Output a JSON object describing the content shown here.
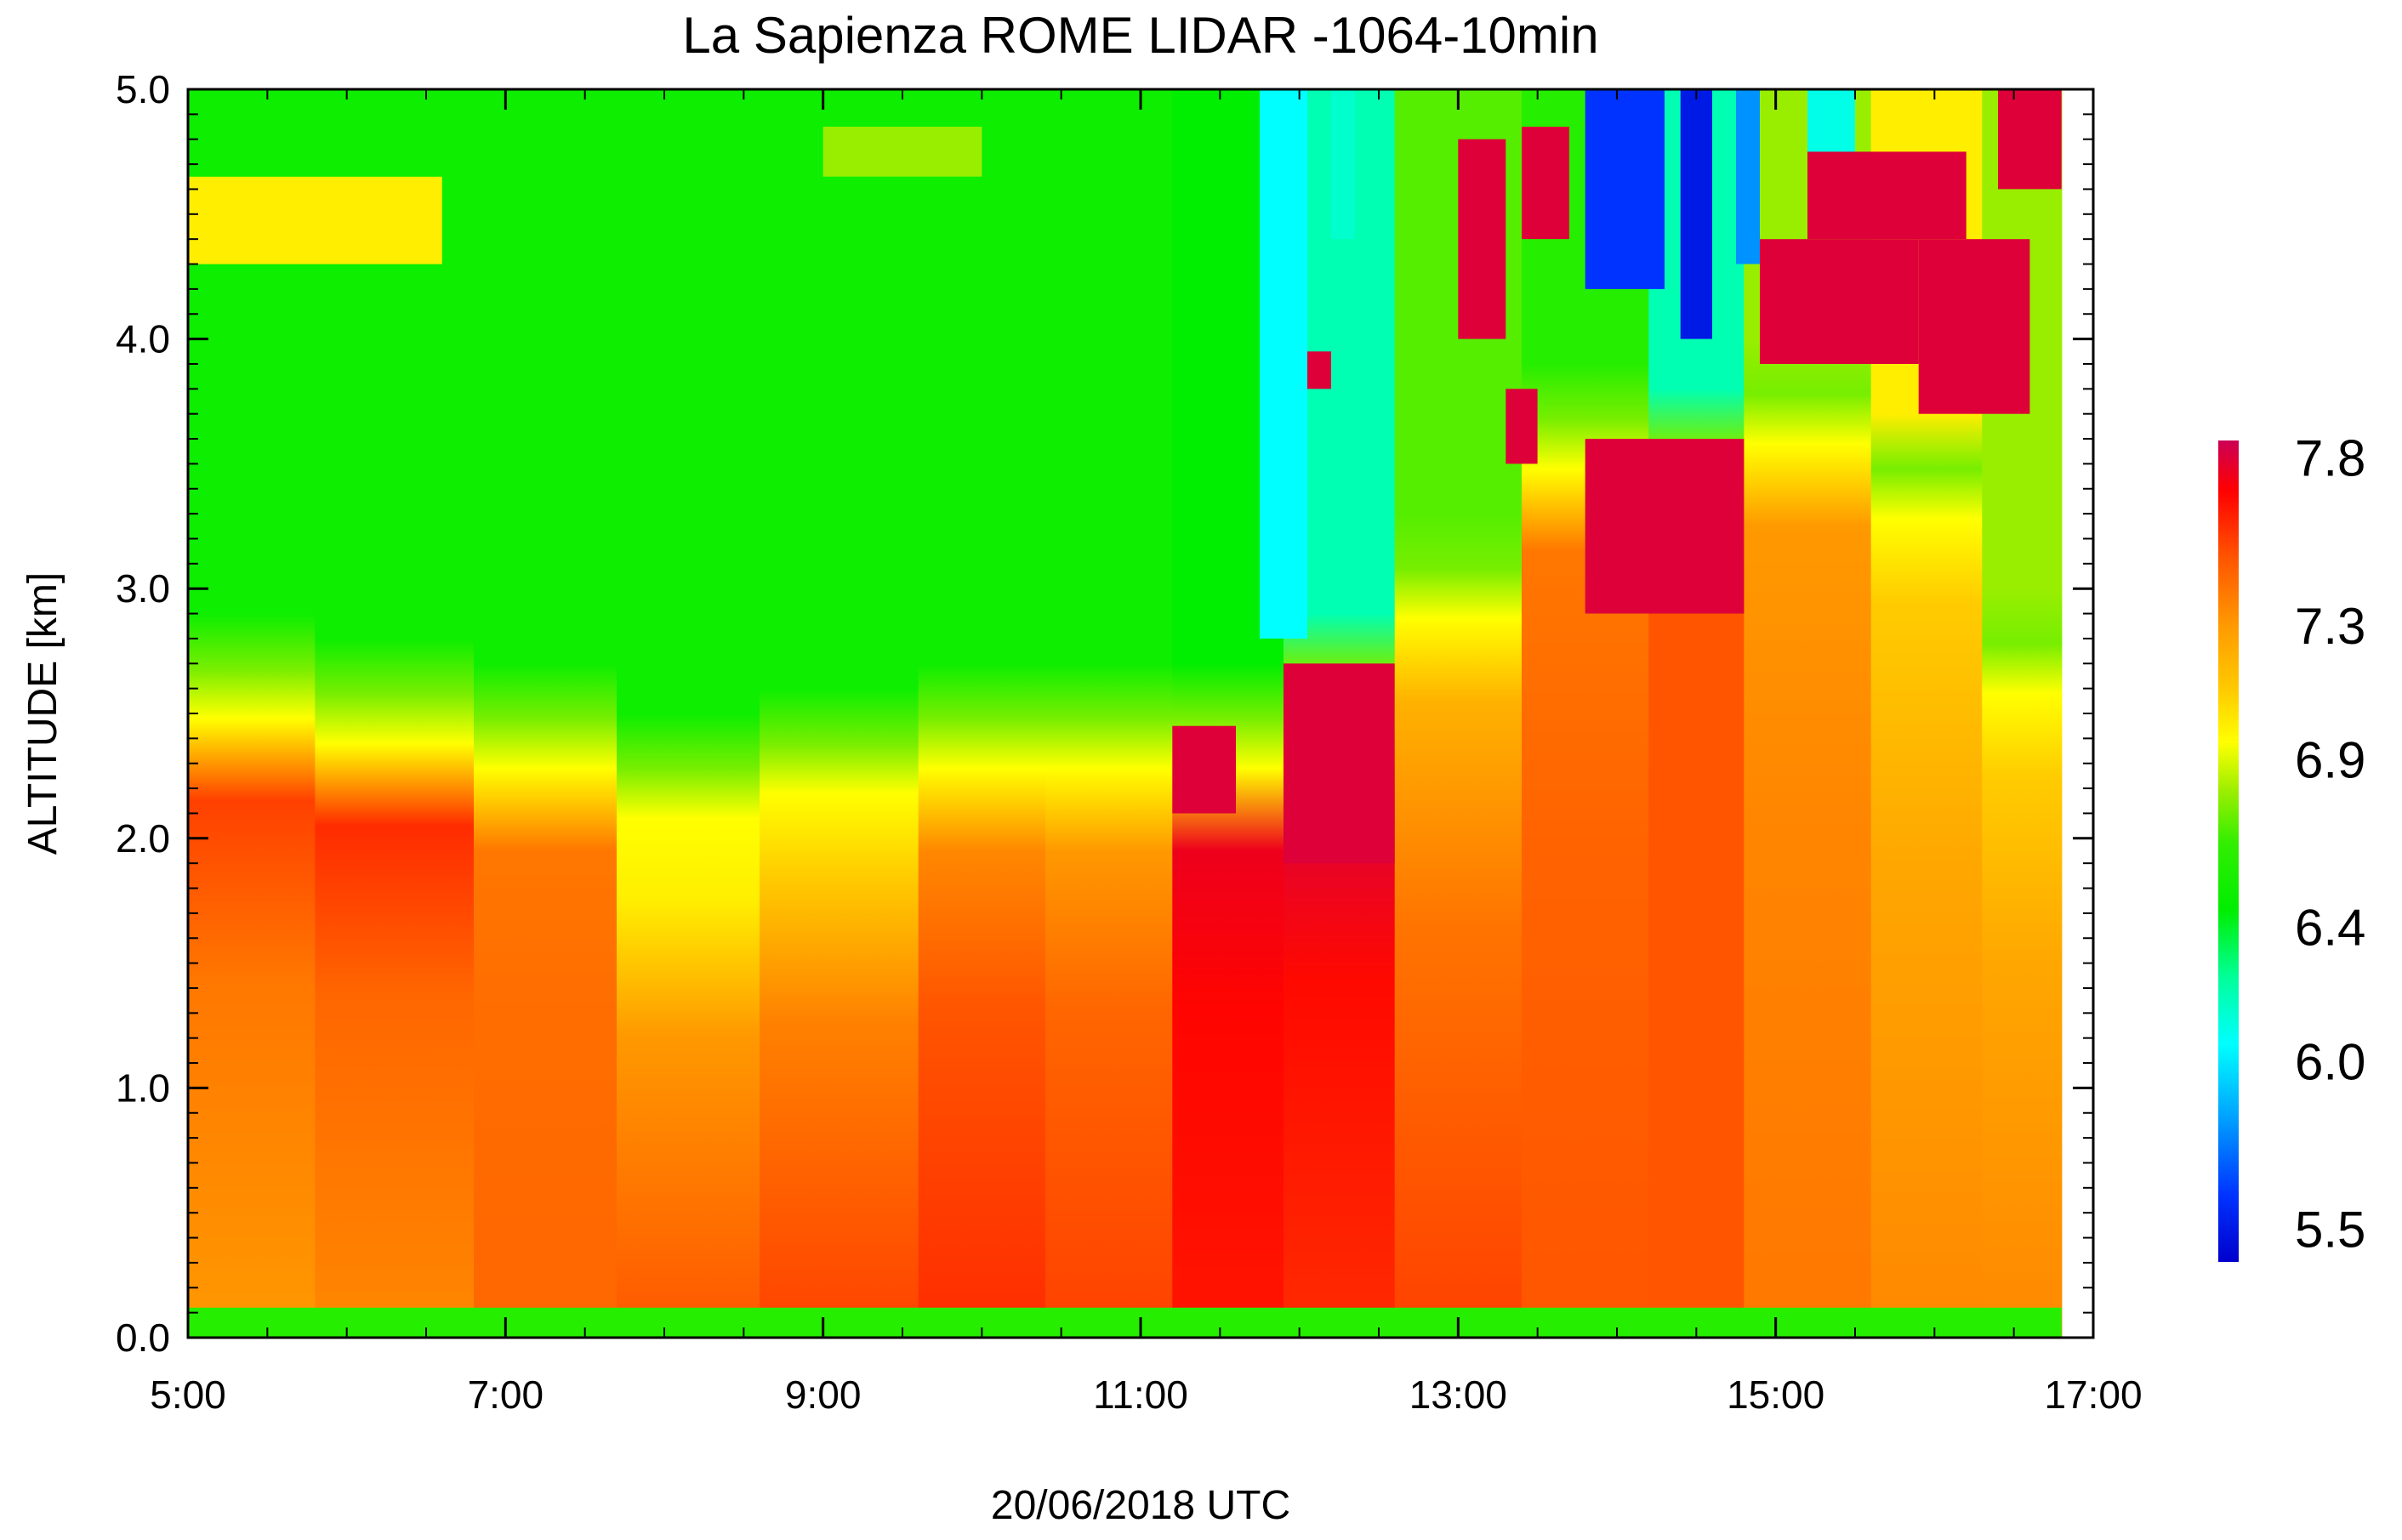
{
  "chart_data": {
    "type": "heatmap",
    "title": "La Sapienza ROME LIDAR -1064-10min",
    "xlabel": "20/06/2018 UTC",
    "ylabel": "ALTITUDE [km]",
    "x_unit": "hour UTC",
    "xlim": [
      5,
      17
    ],
    "ylim": [
      0,
      5
    ],
    "x_ticks": [
      {
        "value": 5,
        "label": "5:00"
      },
      {
        "value": 7,
        "label": "7:00"
      },
      {
        "value": 9,
        "label": "9:00"
      },
      {
        "value": 11,
        "label": "11:00"
      },
      {
        "value": 13,
        "label": "13:00"
      },
      {
        "value": 15,
        "label": "15:00"
      },
      {
        "value": 17,
        "label": "17:00"
      }
    ],
    "y_ticks": [
      {
        "value": 0,
        "label": "0.0"
      },
      {
        "value": 1,
        "label": "1.0"
      },
      {
        "value": 2,
        "label": "2.0"
      },
      {
        "value": 3,
        "label": "3.0"
      },
      {
        "value": 4,
        "label": "4.0"
      },
      {
        "value": 5,
        "label": "5.0"
      }
    ],
    "colorbar": {
      "range": [
        5.4,
        7.85
      ],
      "ticks": [
        {
          "value": 7.8,
          "label": "7.8"
        },
        {
          "value": 7.3,
          "label": "7.3"
        },
        {
          "value": 6.9,
          "label": "6.9"
        },
        {
          "value": 6.4,
          "label": "6.4"
        },
        {
          "value": 6.0,
          "label": "6.0"
        },
        {
          "value": 5.5,
          "label": "5.5"
        }
      ],
      "stops": [
        {
          "value": 5.4,
          "color": "#0000cc"
        },
        {
          "value": 5.6,
          "color": "#0033ff"
        },
        {
          "value": 5.85,
          "color": "#00aaff"
        },
        {
          "value": 6.05,
          "color": "#00ffff"
        },
        {
          "value": 6.25,
          "color": "#00ff99"
        },
        {
          "value": 6.45,
          "color": "#00ee00"
        },
        {
          "value": 6.65,
          "color": "#33ee00"
        },
        {
          "value": 6.8,
          "color": "#99ee00"
        },
        {
          "value": 6.95,
          "color": "#ffff00"
        },
        {
          "value": 7.1,
          "color": "#ffcc00"
        },
        {
          "value": 7.3,
          "color": "#ff9900"
        },
        {
          "value": 7.5,
          "color": "#ff5500"
        },
        {
          "value": 7.7,
          "color": "#ff0000"
        },
        {
          "value": 7.85,
          "color": "#cc0055"
        }
      ]
    },
    "time_blocks": [
      {
        "start": 5.0,
        "end": 5.8,
        "pbl_top": 2.6,
        "low": 7.3,
        "pbl": 7.55,
        "free": 6.5
      },
      {
        "start": 5.8,
        "end": 6.8,
        "pbl_top": 2.5,
        "low": 7.35,
        "pbl": 7.6,
        "free": 6.5
      },
      {
        "start": 6.8,
        "end": 7.7,
        "pbl_top": 2.4,
        "low": 7.45,
        "pbl": 7.4,
        "free": 6.5
      },
      {
        "start": 7.7,
        "end": 8.6,
        "pbl_top": 2.2,
        "low": 7.5,
        "pbl": 7.0,
        "free": 6.5
      },
      {
        "start": 8.6,
        "end": 9.6,
        "pbl_top": 2.3,
        "low": 7.55,
        "pbl": 7.1,
        "free": 6.5
      },
      {
        "start": 9.6,
        "end": 10.4,
        "pbl_top": 2.4,
        "low": 7.6,
        "pbl": 7.35,
        "free": 6.5
      },
      {
        "start": 10.4,
        "end": 11.2,
        "pbl_top": 2.4,
        "low": 7.55,
        "pbl": 7.3,
        "free": 6.5
      },
      {
        "start": 11.2,
        "end": 11.9,
        "pbl_top": 2.4,
        "low": 7.65,
        "pbl": 7.75,
        "free": 6.45
      },
      {
        "start": 11.9,
        "end": 12.6,
        "pbl_top": 2.6,
        "low": 7.6,
        "pbl": 7.8,
        "free": 6.2
      },
      {
        "start": 12.6,
        "end": 13.4,
        "pbl_top": 3.0,
        "low": 7.55,
        "pbl": 7.2,
        "free": 6.7
      },
      {
        "start": 13.4,
        "end": 14.2,
        "pbl_top": 3.6,
        "low": 7.5,
        "pbl": 7.4,
        "free": 6.6
      },
      {
        "start": 14.2,
        "end": 14.8,
        "pbl_top": 3.5,
        "low": 7.5,
        "pbl": 7.5,
        "free": 6.2
      },
      {
        "start": 14.8,
        "end": 15.6,
        "pbl_top": 3.7,
        "low": 7.4,
        "pbl": 7.3,
        "free": 6.8
      },
      {
        "start": 15.6,
        "end": 16.3,
        "pbl_top": 3.4,
        "low": 7.35,
        "pbl": 7.1,
        "free": 7.0
      },
      {
        "start": 16.3,
        "end": 16.8,
        "pbl_top": 2.7,
        "low": 7.35,
        "pbl": 7.1,
        "free": 6.8
      }
    ],
    "features": [
      {
        "kind": "surface",
        "t0": 5.0,
        "t1": 16.8,
        "z0": 0.0,
        "z1": 0.12,
        "value": 6.6
      },
      {
        "kind": "aerosol_layer",
        "t0": 5.0,
        "t1": 6.6,
        "z0": 4.3,
        "z1": 4.65,
        "value": 7.0
      },
      {
        "kind": "aerosol_layer",
        "t0": 9.0,
        "t1": 10.0,
        "z0": 4.65,
        "z1": 4.85,
        "value": 6.8
      },
      {
        "kind": "cloud",
        "t0": 11.2,
        "t1": 11.6,
        "z0": 2.1,
        "z1": 2.45,
        "value": 7.8
      },
      {
        "kind": "cloud",
        "t0": 11.9,
        "t1": 12.6,
        "z0": 1.9,
        "z1": 2.7,
        "value": 7.8
      },
      {
        "kind": "cloud",
        "t0": 12.0,
        "t1": 12.2,
        "z0": 3.8,
        "z1": 3.95,
        "value": 7.8
      },
      {
        "kind": "clear_column",
        "t0": 11.75,
        "t1": 12.05,
        "z0": 2.8,
        "z1": 5.0,
        "value": 6.05
      },
      {
        "kind": "clear_column",
        "t0": 12.2,
        "t1": 12.35,
        "z0": 4.4,
        "z1": 5.0,
        "value": 6.15
      },
      {
        "kind": "cloud",
        "t0": 13.0,
        "t1": 13.3,
        "z0": 4.0,
        "z1": 4.8,
        "value": 7.8
      },
      {
        "kind": "cloud",
        "t0": 13.4,
        "t1": 13.7,
        "z0": 4.4,
        "z1": 4.85,
        "value": 7.8
      },
      {
        "kind": "cloud",
        "t0": 13.3,
        "t1": 13.5,
        "z0": 3.5,
        "z1": 3.8,
        "value": 7.8
      },
      {
        "kind": "clear_column",
        "t0": 13.8,
        "t1": 14.3,
        "z0": 4.2,
        "z1": 5.0,
        "value": 5.6
      },
      {
        "kind": "clear_column",
        "t0": 14.4,
        "t1": 14.6,
        "z0": 4.0,
        "z1": 5.0,
        "value": 5.5
      },
      {
        "kind": "clear_column",
        "t0": 14.75,
        "t1": 14.9,
        "z0": 4.3,
        "z1": 5.0,
        "value": 5.8
      },
      {
        "kind": "clear_column",
        "t0": 15.2,
        "t1": 15.5,
        "z0": 4.6,
        "z1": 5.0,
        "value": 6.1
      },
      {
        "kind": "cloud",
        "t0": 13.8,
        "t1": 14.8,
        "z0": 2.9,
        "z1": 3.6,
        "value": 7.8
      },
      {
        "kind": "cloud",
        "t0": 14.9,
        "t1": 15.9,
        "z0": 3.9,
        "z1": 4.4,
        "value": 7.8
      },
      {
        "kind": "cloud",
        "t0": 15.9,
        "t1": 16.6,
        "z0": 3.7,
        "z1": 4.4,
        "value": 7.8
      },
      {
        "kind": "cloud",
        "t0": 15.2,
        "t1": 16.2,
        "z0": 4.4,
        "z1": 4.75,
        "value": 7.8
      },
      {
        "kind": "cloud",
        "t0": 16.4,
        "t1": 16.8,
        "z0": 4.6,
        "z1": 5.0,
        "value": 7.8
      }
    ]
  }
}
